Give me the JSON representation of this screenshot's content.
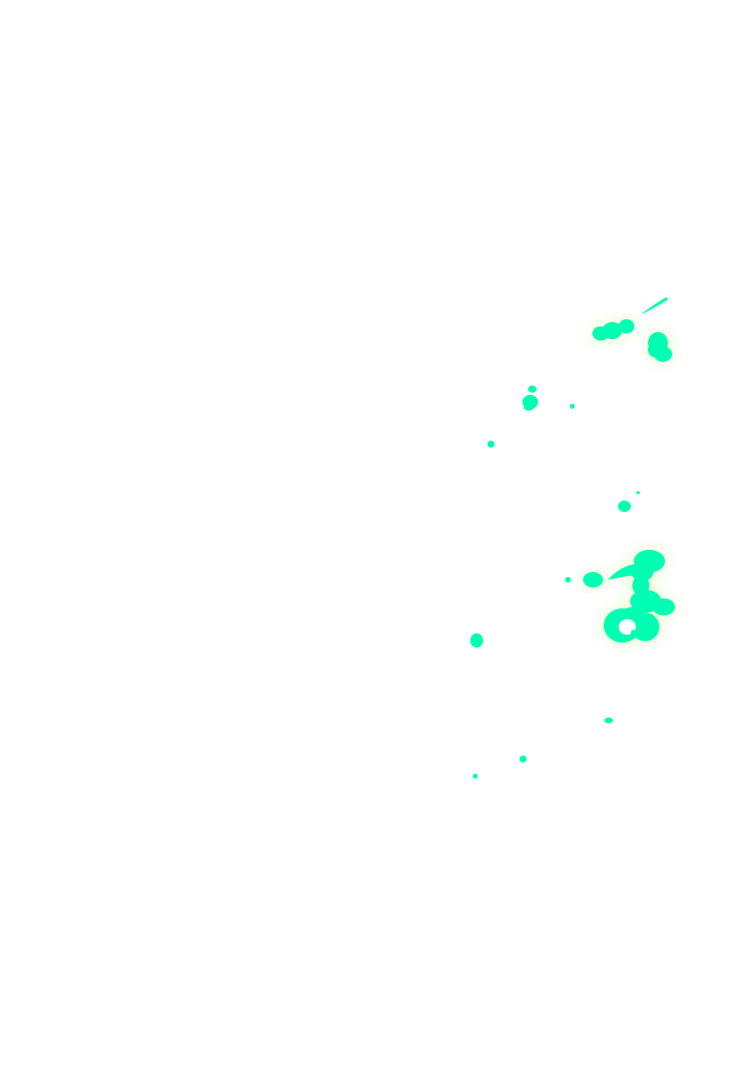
{
  "page": {
    "background_color": "#ffffff"
  },
  "splatter": {
    "fill_color": "#00ffb2",
    "glow_color": "#b8ff7a",
    "blob_count": 16
  }
}
